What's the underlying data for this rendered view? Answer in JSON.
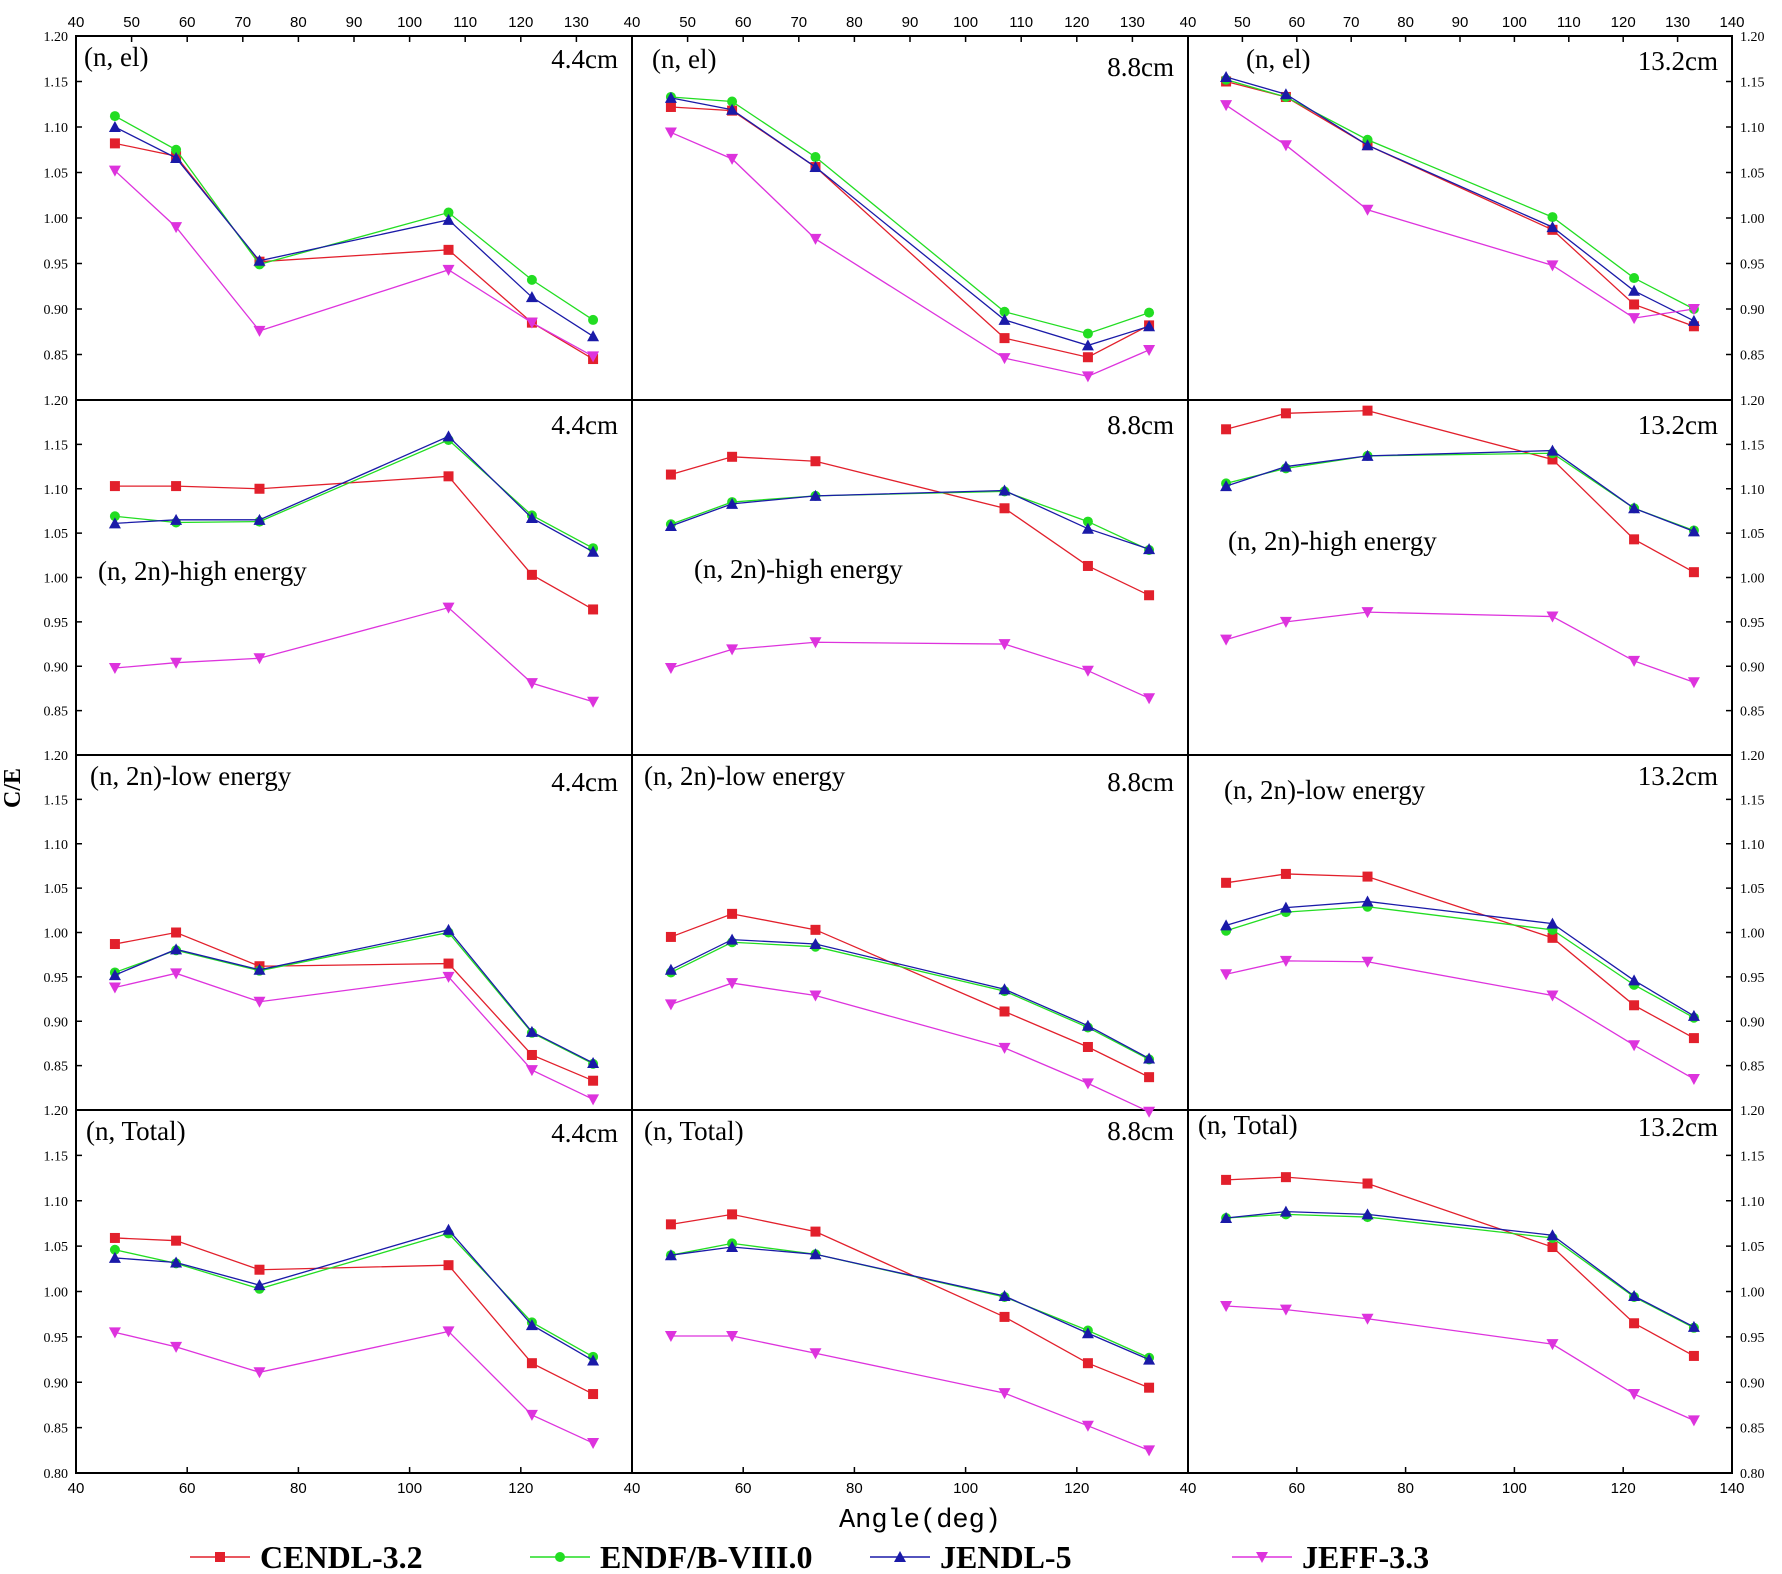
{
  "chart_data": {
    "type": "line",
    "ylabel": "C/E",
    "xlabel": "Angle(deg)",
    "xlim": [
      40,
      140
    ],
    "x_ticks": [
      40,
      60,
      80,
      100,
      120,
      140
    ],
    "x_ticks_top": [
      40,
      50,
      60,
      70,
      80,
      90,
      100,
      110,
      120,
      130,
      140
    ],
    "ylim": [
      0.8,
      1.2
    ],
    "y_ticks": [
      "0.80",
      "0.85",
      "0.90",
      "0.95",
      "1.00",
      "1.05",
      "1.10",
      "1.15",
      "1.20"
    ],
    "x": [
      47,
      58,
      73,
      107,
      122,
      133
    ],
    "series_style": [
      {
        "name": "CENDL-3.2",
        "color": "#e2202c",
        "marker": "square"
      },
      {
        "name": "ENDF/B-VIII.0",
        "color": "#22dd22",
        "marker": "circle"
      },
      {
        "name": "JENDL-5",
        "color": "#1a1aa8",
        "marker": "triangle-up"
      },
      {
        "name": "JEFF-3.3",
        "color": "#dd33dd",
        "marker": "triangle-down"
      }
    ],
    "panels": [
      {
        "row": 0,
        "col": 0,
        "reaction": "(n, el)",
        "thickness": "4.4cm",
        "series": [
          [
            1.082,
            1.068,
            0.952,
            0.965,
            0.885,
            0.845
          ],
          [
            1.112,
            1.075,
            0.949,
            1.006,
            0.932,
            0.888
          ],
          [
            1.1,
            1.066,
            0.953,
            0.998,
            0.913,
            0.87
          ],
          [
            1.052,
            0.99,
            0.876,
            0.943,
            0.885,
            0.848
          ]
        ]
      },
      {
        "row": 0,
        "col": 1,
        "reaction": "(n, el)",
        "thickness": "8.8cm",
        "series": [
          [
            1.122,
            1.118,
            1.056,
            0.868,
            0.847,
            0.882
          ],
          [
            1.133,
            1.128,
            1.067,
            0.897,
            0.873,
            0.896
          ],
          [
            1.132,
            1.119,
            1.056,
            0.888,
            0.86,
            0.881
          ],
          [
            1.094,
            1.065,
            0.977,
            0.846,
            0.826,
            0.855
          ]
        ]
      },
      {
        "row": 0,
        "col": 2,
        "reaction": "(n, el)",
        "thickness": "13.2cm",
        "series": [
          [
            1.15,
            1.133,
            1.08,
            0.987,
            0.905,
            0.881
          ],
          [
            1.152,
            1.133,
            1.086,
            1.001,
            0.934,
            0.9
          ],
          [
            1.155,
            1.136,
            1.08,
            0.99,
            0.92,
            0.887
          ],
          [
            1.124,
            1.08,
            1.009,
            0.948,
            0.89,
            0.9
          ]
        ]
      },
      {
        "row": 1,
        "col": 0,
        "reaction": "(n, 2n)-high energy",
        "thickness": "4.4cm",
        "series": [
          [
            1.103,
            1.103,
            1.1,
            1.114,
            1.003,
            0.964
          ],
          [
            1.069,
            1.062,
            1.063,
            1.155,
            1.07,
            1.033
          ],
          [
            1.061,
            1.065,
            1.065,
            1.159,
            1.067,
            1.029
          ],
          [
            0.898,
            0.904,
            0.909,
            0.966,
            0.881,
            0.86
          ]
        ]
      },
      {
        "row": 1,
        "col": 1,
        "reaction": "(n, 2n)-high energy",
        "thickness": "8.8cm",
        "series": [
          [
            1.116,
            1.136,
            1.131,
            1.078,
            1.013,
            0.98
          ],
          [
            1.06,
            1.085,
            1.092,
            1.097,
            1.063,
            1.031
          ],
          [
            1.058,
            1.083,
            1.092,
            1.098,
            1.055,
            1.032
          ],
          [
            0.898,
            0.919,
            0.927,
            0.925,
            0.895,
            0.864
          ]
        ]
      },
      {
        "row": 1,
        "col": 2,
        "reaction": "(n, 2n)-high energy",
        "thickness": "13.2cm",
        "series": [
          [
            1.167,
            1.185,
            1.188,
            1.133,
            1.043,
            1.006
          ],
          [
            1.106,
            1.123,
            1.137,
            1.14,
            1.078,
            1.053
          ],
          [
            1.103,
            1.125,
            1.137,
            1.143,
            1.078,
            1.052
          ],
          [
            0.93,
            0.95,
            0.961,
            0.956,
            0.906,
            0.882
          ]
        ]
      },
      {
        "row": 2,
        "col": 0,
        "reaction": "(n, 2n)-low energy",
        "thickness": "4.4cm",
        "series": [
          [
            0.987,
            1.0,
            0.962,
            0.965,
            0.862,
            0.833
          ],
          [
            0.955,
            0.98,
            0.957,
            1.0,
            0.887,
            0.852
          ],
          [
            0.952,
            0.981,
            0.958,
            1.003,
            0.888,
            0.853
          ],
          [
            0.938,
            0.954,
            0.922,
            0.95,
            0.845,
            0.812
          ]
        ]
      },
      {
        "row": 2,
        "col": 1,
        "reaction": "(n, 2n)-low energy",
        "thickness": "8.8cm",
        "series": [
          [
            0.995,
            1.021,
            1.003,
            0.911,
            0.871,
            0.837
          ],
          [
            0.955,
            0.989,
            0.984,
            0.934,
            0.893,
            0.857
          ],
          [
            0.958,
            0.992,
            0.987,
            0.936,
            0.895,
            0.858
          ],
          [
            0.919,
            0.943,
            0.929,
            0.87,
            0.83,
            0.798
          ]
        ]
      },
      {
        "row": 2,
        "col": 2,
        "reaction": "(n, 2n)-low energy",
        "thickness": "13.2cm",
        "series": [
          [
            1.056,
            1.066,
            1.063,
            0.994,
            0.918,
            0.881
          ],
          [
            1.002,
            1.023,
            1.029,
            1.003,
            0.941,
            0.904
          ],
          [
            1.008,
            1.028,
            1.035,
            1.01,
            0.946,
            0.906
          ],
          [
            0.953,
            0.968,
            0.967,
            0.929,
            0.873,
            0.835
          ]
        ]
      },
      {
        "row": 3,
        "col": 0,
        "reaction": "(n, Total)",
        "thickness": "4.4cm",
        "series": [
          [
            1.059,
            1.056,
            1.024,
            1.029,
            0.921,
            0.887
          ],
          [
            1.046,
            1.031,
            1.003,
            1.064,
            0.966,
            0.928
          ],
          [
            1.037,
            1.032,
            1.007,
            1.068,
            0.963,
            0.924
          ],
          [
            0.955,
            0.939,
            0.911,
            0.956,
            0.864,
            0.833
          ]
        ]
      },
      {
        "row": 3,
        "col": 1,
        "reaction": "(n, Total)",
        "thickness": "8.8cm",
        "series": [
          [
            1.074,
            1.085,
            1.066,
            0.972,
            0.921,
            0.894
          ],
          [
            1.04,
            1.053,
            1.041,
            0.994,
            0.957,
            0.927
          ],
          [
            1.04,
            1.049,
            1.041,
            0.995,
            0.954,
            0.925
          ],
          [
            0.951,
            0.951,
            0.932,
            0.888,
            0.852,
            0.825
          ]
        ]
      },
      {
        "row": 3,
        "col": 2,
        "reaction": "(n, Total)",
        "thickness": "13.2cm",
        "series": [
          [
            1.123,
            1.126,
            1.119,
            1.049,
            0.965,
            0.929
          ],
          [
            1.081,
            1.085,
            1.082,
            1.059,
            0.994,
            0.96
          ],
          [
            1.081,
            1.088,
            1.085,
            1.062,
            0.995,
            0.961
          ],
          [
            0.984,
            0.98,
            0.97,
            0.942,
            0.887,
            0.858
          ]
        ]
      }
    ]
  }
}
